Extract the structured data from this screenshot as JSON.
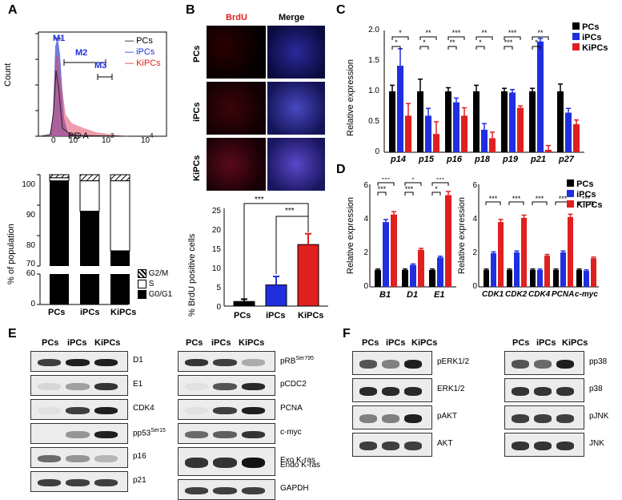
{
  "panels": {
    "A": "A",
    "B": "B",
    "C": "C",
    "D": "D",
    "E": "E",
    "F": "F"
  },
  "colors": {
    "pcs": "#000000",
    "ipcs": "#1f2fe0",
    "kipcs": "#e01f1f",
    "brdu": "#e02020"
  },
  "panelA": {
    "flow": {
      "ylabel": "Count",
      "xlabel": "PE-A",
      "ticks": [
        "0",
        "10",
        "2",
        "10",
        "3",
        "10",
        "4"
      ],
      "gates": [
        "M1",
        "M2",
        "M3"
      ],
      "legend": [
        "PCs",
        "iPCs",
        "KiPCs"
      ]
    },
    "cycle": {
      "ylabel": "% of population",
      "yticks": [
        "100",
        "90",
        "80",
        "70",
        "60",
        "0"
      ],
      "legend": [
        "G2/M",
        "S",
        "G0/G1"
      ]
    }
  },
  "panelB": {
    "col_headers": [
      "BrdU",
      "Merge"
    ],
    "row_labels": [
      "PCs",
      "iPCs",
      "KiPCs"
    ],
    "bar": {
      "ylabel": "% BrdU positive cells",
      "yticks": [
        "0",
        "5",
        "10",
        "15",
        "20",
        "25"
      ]
    },
    "sig": [
      "***",
      "***"
    ]
  },
  "panelC": {
    "ylabel": "Relative expression",
    "yticks": [
      "0",
      "0.5",
      "1.0",
      "1.5",
      "2.0"
    ],
    "legend": [
      "PCs",
      "iPCs",
      "KiPCs"
    ],
    "sig": [
      "*",
      "*",
      "**",
      "*",
      "***",
      "**",
      "**",
      "*",
      "***",
      "***",
      "**",
      "*"
    ]
  },
  "panelD": {
    "ylabel": "Relative expression",
    "yticks": [
      "0",
      "2",
      "4",
      "6"
    ],
    "legend": [
      "PCs",
      "iPCs",
      "KiPCs"
    ],
    "sig_left": [
      "***",
      "***",
      "*",
      "***",
      "***",
      "*",
      "***",
      "***"
    ],
    "sig_right": [
      "***",
      "***",
      "***",
      "***",
      "***",
      "***",
      "***",
      "***"
    ]
  },
  "panelE": {
    "lanes": [
      "PCs",
      "iPCs",
      "KiPCs"
    ],
    "left": [
      "D1",
      "E1",
      "CDK4",
      "pp53",
      "p16",
      "p21"
    ],
    "left_sup": {
      "pp53": "Ser15"
    },
    "right": [
      "pRB",
      "pCDC2",
      "PCNA",
      "c-myc",
      "Exo K-ras",
      "Endo K-ras",
      "GAPDH"
    ],
    "right_sup": {
      "pRB": "Ser795"
    }
  },
  "panelF": {
    "lanes": [
      "PCs",
      "iPCs",
      "KiPCs"
    ],
    "left": [
      "pERK1/2",
      "ERK1/2",
      "pAKT",
      "AKT"
    ],
    "right": [
      "pp38",
      "p38",
      "pJNK",
      "JNK"
    ]
  },
  "chart_data": [
    {
      "type": "bar",
      "title": "",
      "categories": [
        "PCs",
        "iPCs",
        "KiPCs"
      ],
      "series": [
        {
          "name": "G0/G1",
          "values": [
            98,
            88,
            75
          ]
        },
        {
          "name": "S",
          "values": [
            1,
            10,
            23
          ]
        },
        {
          "name": "G2/M",
          "values": [
            1,
            2,
            2
          ]
        }
      ],
      "xlabel": "",
      "ylabel": "% of population",
      "ylim": [
        0,
        100
      ]
    },
    {
      "type": "bar",
      "title": "",
      "categories": [
        "PCs",
        "iPCs",
        "KiPCs"
      ],
      "values": [
        1.2,
        5.5,
        16
      ],
      "errors": [
        0.6,
        2.2,
        2.8
      ],
      "xlabel": "",
      "ylabel": "% BrdU positive cells",
      "ylim": [
        0,
        25
      ]
    },
    {
      "type": "bar",
      "title": "",
      "categories": [
        "p14",
        "p15",
        "p16",
        "p18",
        "p19",
        "p21",
        "p27"
      ],
      "series": [
        {
          "name": "PCs",
          "values": [
            1,
            1,
            1,
            1,
            1,
            1,
            1
          ]
        },
        {
          "name": "iPCs",
          "values": [
            1.42,
            0.6,
            0.82,
            0.37,
            0.98,
            1.82,
            0.65
          ]
        },
        {
          "name": "KiPCs",
          "values": [
            0.6,
            0.3,
            0.6,
            0.23,
            0.73,
            0.04,
            0.46
          ]
        }
      ],
      "errors": [
        [
          0.1,
          0.2,
          0.06,
          0.1,
          0.05,
          0.05,
          0.12
        ],
        [
          0.28,
          0.12,
          0.07,
          0.1,
          0.05,
          0.05,
          0.07
        ],
        [
          0.2,
          0.2,
          0.13,
          0.1,
          0.03,
          0.07,
          0.07
        ]
      ],
      "xlabel": "",
      "ylabel": "Relative expression",
      "ylim": [
        0,
        2.0
      ]
    },
    {
      "type": "bar",
      "title": "",
      "categories": [
        "B1",
        "D1",
        "E1"
      ],
      "series": [
        {
          "name": "PCs",
          "values": [
            1,
            1,
            1
          ]
        },
        {
          "name": "iPCs",
          "values": [
            3.85,
            1.3,
            1.75
          ]
        },
        {
          "name": "KiPCs",
          "values": [
            4.3,
            2.2,
            5.45
          ]
        }
      ],
      "xlabel": "",
      "ylabel": "Relative expression",
      "ylim": [
        0,
        6
      ]
    },
    {
      "type": "bar",
      "title": "",
      "categories": [
        "CDK1",
        "CDK2",
        "CDK4",
        "PCNA",
        "c-myc"
      ],
      "series": [
        {
          "name": "PCs",
          "values": [
            1,
            1,
            1,
            1,
            1
          ]
        },
        {
          "name": "iPCs",
          "values": [
            2.0,
            2.05,
            1.0,
            2.05,
            0.95
          ]
        },
        {
          "name": "KiPCs",
          "values": [
            3.85,
            4.1,
            1.85,
            4.15,
            1.7
          ]
        }
      ],
      "xlabel": "",
      "ylabel": "Relative expression",
      "ylim": [
        0,
        6
      ]
    }
  ]
}
